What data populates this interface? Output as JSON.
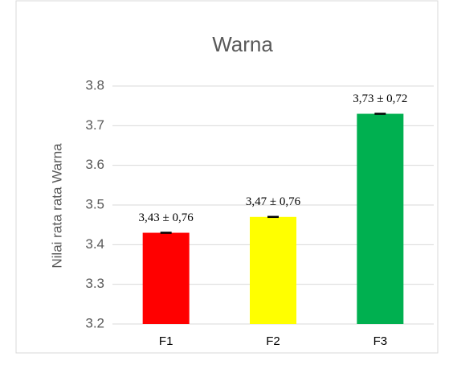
{
  "chart_data": {
    "type": "bar",
    "title": "Warna",
    "y_label": "Nilai rata rata Warna",
    "categories": [
      "F1",
      "F2",
      "F3"
    ],
    "values": [
      3.43,
      3.47,
      3.73
    ],
    "value_labels": [
      "3,43 ± 0,76",
      "3,47 ± 0,76",
      "3,73 ± 0,72"
    ],
    "colors": [
      "#ff0000",
      "#ffff00",
      "#00b050"
    ],
    "ylim": [
      3.2,
      3.8
    ],
    "yticks": [
      3.2,
      3.3,
      3.4,
      3.5,
      3.6,
      3.7,
      3.8
    ],
    "grid": true
  }
}
